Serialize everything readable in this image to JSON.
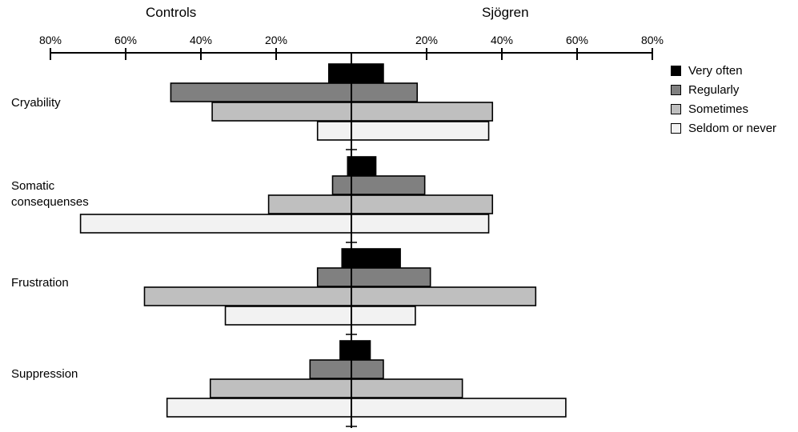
{
  "headers": {
    "left": "Controls",
    "right": "Sjögren"
  },
  "chart_data": {
    "type": "bar",
    "orientation": "horizontal-diverging",
    "categories": [
      "Cryability",
      "Somatic consequenses",
      "Frustration",
      "Suppression"
    ],
    "category_label_lines": [
      [
        "Cryability"
      ],
      [
        "Somatic",
        "consequenses"
      ],
      [
        "Frustration"
      ],
      [
        "Suppression"
      ]
    ],
    "tick_labels": [
      "80%",
      "60%",
      "40%",
      "20%",
      "20%",
      "40%",
      "60%",
      "80%"
    ],
    "tick_values": [
      -80,
      -60,
      -40,
      -20,
      20,
      40,
      60,
      80
    ],
    "xlim": [
      -80,
      80
    ],
    "legend_position": "right",
    "series": [
      {
        "name": "Very often",
        "color": "#000000",
        "controls": [
          6,
          1,
          2.5,
          3
        ],
        "sjogren": [
          8.5,
          6.5,
          13,
          5
        ]
      },
      {
        "name": "Regularly",
        "color": "#808080",
        "controls": [
          48,
          5,
          9,
          11
        ],
        "sjogren": [
          17.5,
          19.5,
          21,
          8.5
        ]
      },
      {
        "name": "Sometimes",
        "color": "#bfbfbf",
        "controls": [
          37,
          22,
          55,
          37.5
        ],
        "sjogren": [
          37.5,
          37.5,
          49,
          29.5
        ]
      },
      {
        "name": "Seldom or never",
        "color": "#f2f2f2",
        "controls": [
          9,
          72,
          33.5,
          49
        ],
        "sjogren": [
          36.5,
          36.5,
          17,
          57
        ]
      }
    ]
  }
}
